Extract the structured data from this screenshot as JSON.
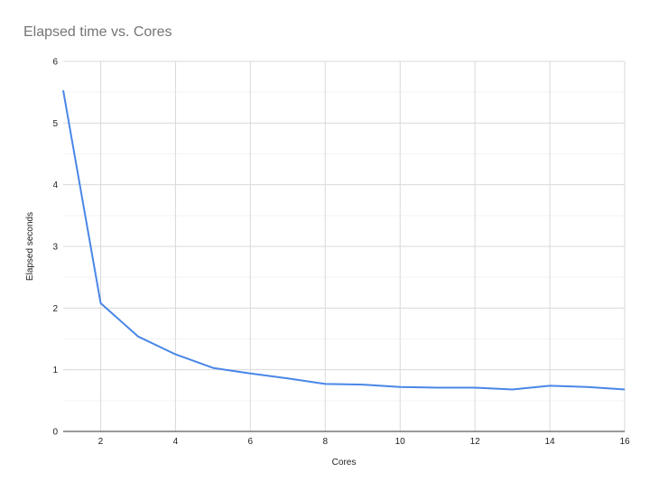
{
  "chart_data": {
    "type": "line",
    "title": "Elapsed time vs. Cores",
    "xlabel": "Cores",
    "ylabel": "Elapsed seconds",
    "xlim": [
      1,
      16
    ],
    "ylim": [
      0,
      6
    ],
    "x_ticks": [
      2,
      4,
      6,
      8,
      10,
      12,
      14,
      16
    ],
    "y_ticks": [
      0,
      1,
      2,
      3,
      4,
      5,
      6
    ],
    "grid": true,
    "series": [
      {
        "x": [
          1,
          2,
          3,
          4,
          5,
          6,
          7,
          8,
          9,
          10,
          11,
          12,
          13,
          14,
          15,
          16
        ],
        "values": [
          5.53,
          2.08,
          1.54,
          1.25,
          1.03,
          0.94,
          0.86,
          0.77,
          0.76,
          0.72,
          0.71,
          0.71,
          0.68,
          0.74,
          0.72,
          0.68
        ],
        "color": "#4a86e8"
      }
    ]
  }
}
